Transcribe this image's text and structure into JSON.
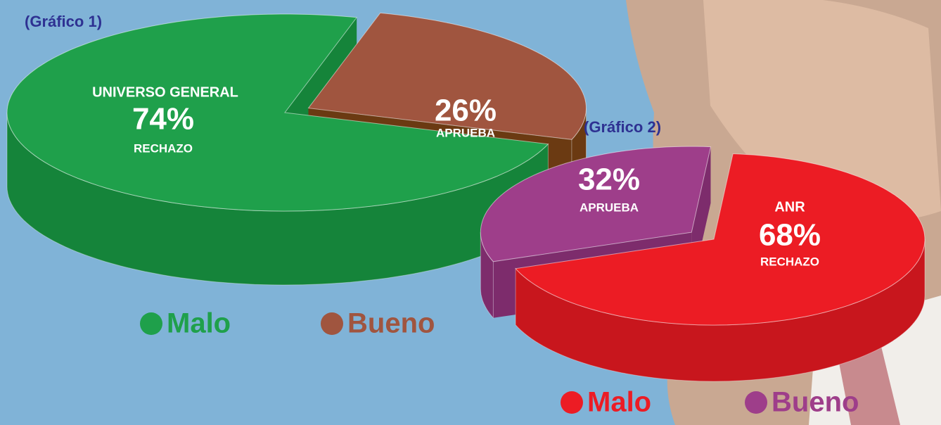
{
  "chart_data": [
    {
      "type": "pie",
      "title": "(Gráfico 1)",
      "subtitle": "UNIVERSO GENERAL",
      "categories": [
        "Malo",
        "Bueno"
      ],
      "values": [
        74,
        26
      ],
      "value_labels": [
        "74%",
        "26%"
      ],
      "slice_labels": [
        "RECHAZO",
        "APRUEBA"
      ],
      "colors": [
        "#1fa04b",
        "#a0553f"
      ],
      "side_colors": [
        "#15843a",
        "#6b3a12"
      ]
    },
    {
      "type": "pie",
      "title": "(Gráfico 2)",
      "subtitle": "ANR",
      "categories": [
        "Malo",
        "Bueno"
      ],
      "values": [
        68,
        32
      ],
      "value_labels": [
        "68%",
        "32%"
      ],
      "slice_labels": [
        "RECHAZO",
        "APRUEBA"
      ],
      "colors": [
        "#ec1c24",
        "#9e3e8a"
      ],
      "side_colors": [
        "#c8161d",
        "#7d2c6c"
      ]
    }
  ]
}
